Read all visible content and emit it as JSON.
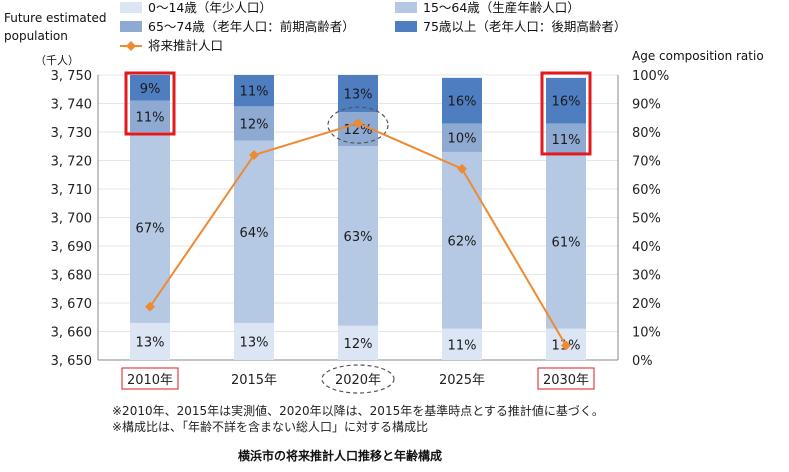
{
  "labels": {
    "left_title_line1": "Future  estimated",
    "left_title_line2": "population",
    "left_unit": "（千人）",
    "right_title": "Age composition ratio"
  },
  "notes": [
    "※2010年、2015年は実測値、2020年以降は、2015年を基準時点とする推計値に基づく。",
    "※構成比は、「年齢不詳を含まない総人口」に対する構成比"
  ],
  "caption": "横浜市の将来推計人口推移と年齢構成",
  "colors": {
    "age_0_14": "#dbe5f3",
    "age_15_64": "#b6c9e4",
    "age_65_74": "#8eaad3",
    "age_75_plus": "#4f7ec0",
    "line": "#ed8a32",
    "highlight_box": "#e31a1c",
    "dashed": "#555555"
  },
  "chart_data": {
    "type": "bar",
    "stacked": true,
    "categories": [
      "2010年",
      "2015年",
      "2020年",
      "2025年",
      "2030年"
    ],
    "series": [
      {
        "name": "0～14歳（年少人口）",
        "values": [
          13,
          13,
          12,
          11,
          11
        ],
        "labels": [
          "13%",
          "13%",
          "12%",
          "11%",
          "11%"
        ]
      },
      {
        "name": "15～64歳（生産年齢人口）",
        "values": [
          67,
          64,
          63,
          62,
          61
        ],
        "labels": [
          "67%",
          "64%",
          "63%",
          "62%",
          "61%"
        ]
      },
      {
        "name": "65～74歳（老年人口：前期高齢者）",
        "values": [
          11,
          12,
          12,
          10,
          11
        ],
        "labels": [
          "11%",
          "12%",
          "12%",
          "10%",
          "11%"
        ]
      },
      {
        "name": "75歳以上（老年人口：後期高齢者）",
        "values": [
          9,
          11,
          13,
          16,
          16
        ],
        "labels": [
          "9%",
          "11%",
          "13%",
          "16%",
          "16%"
        ]
      }
    ],
    "line_series": {
      "name": "将来推計人口",
      "values": [
        3668.7,
        3721.9,
        3733.1,
        3717.1,
        3655.1
      ]
    },
    "left_axis": {
      "ylim": [
        3650,
        3750
      ],
      "ticks": [
        "3, 650",
        "3, 660",
        "3, 670",
        "3, 680",
        "3, 690",
        "3, 700",
        "3, 710",
        "3, 720",
        "3, 730",
        "3, 740",
        "3, 750"
      ]
    },
    "right_axis": {
      "ylim": [
        0,
        100
      ],
      "ticks": [
        "0%",
        "10%",
        "20%",
        "30%",
        "40%",
        "50%",
        "60%",
        "70%",
        "80%",
        "90%",
        "100%"
      ]
    },
    "highlighted_categories": [
      "2010年",
      "2030年"
    ],
    "circled_categories": [
      "2020年"
    ],
    "legend_position": "top"
  }
}
